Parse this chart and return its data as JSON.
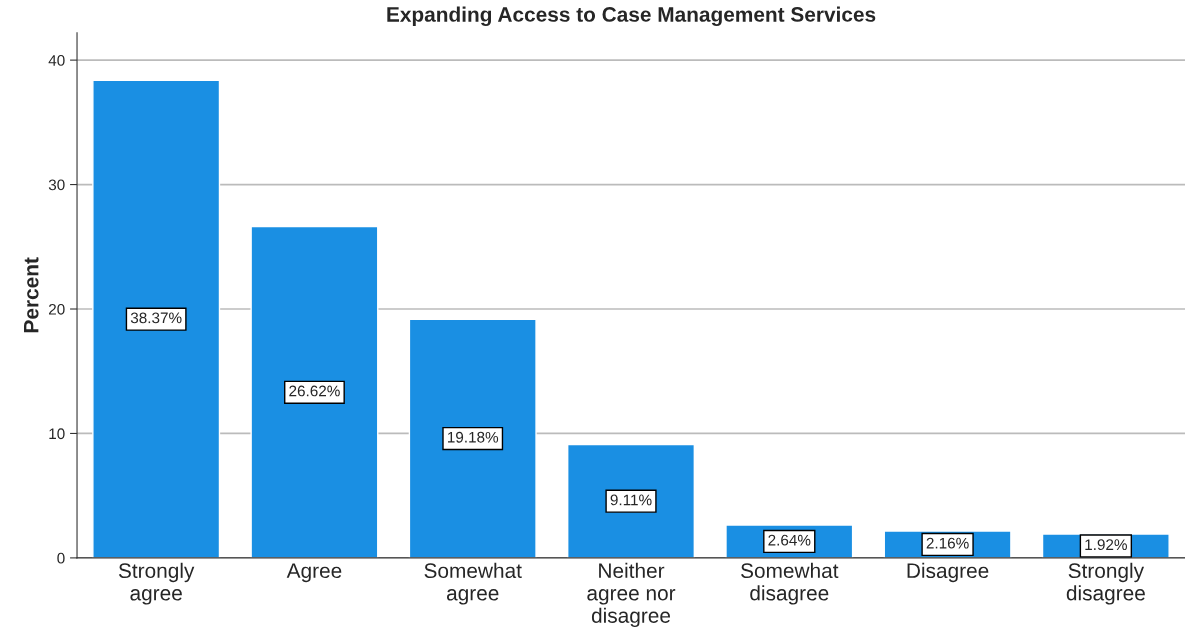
{
  "chart_data": {
    "type": "bar",
    "title": "Expanding Access to Case Management Services",
    "ylabel": "Percent",
    "categories": [
      "Strongly\nagree",
      "Agree",
      "Somewhat\nagree",
      "Neither\nagree nor\ndisagree",
      "Somewhat\ndisagree",
      "Disagree",
      "Strongly\ndisagree"
    ],
    "values": [
      38.37,
      26.62,
      19.18,
      9.11,
      2.64,
      2.16,
      1.92
    ],
    "value_labels": [
      "38.37%",
      "26.62%",
      "19.18%",
      "9.11%",
      "2.64%",
      "2.16%",
      "1.92%"
    ],
    "color": "#1a8fe3",
    "ylim": [
      0,
      42.2
    ],
    "yticks": [
      0,
      10,
      20,
      30,
      40
    ],
    "grid": "y"
  }
}
